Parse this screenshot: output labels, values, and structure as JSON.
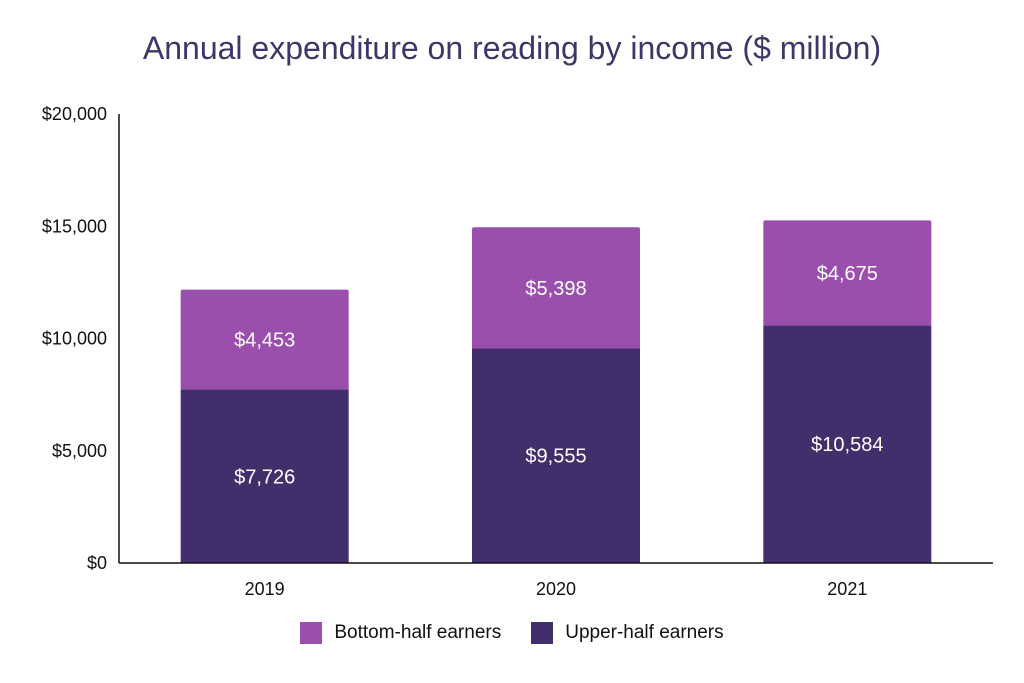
{
  "chart_data": {
    "type": "bar",
    "stacked": true,
    "title": "Annual expenditure on reading by income ($ million)",
    "categories": [
      "2019",
      "2020",
      "2021"
    ],
    "series": [
      {
        "name": "Upper-half earners",
        "values": [
          7726,
          9555,
          10584
        ],
        "labels": [
          "$7,726",
          "$9,555",
          "$10,584"
        ],
        "color": "#432e6c"
      },
      {
        "name": "Bottom-half earners",
        "values": [
          4453,
          5398,
          4675
        ],
        "labels": [
          "$4,453",
          "$5,398",
          "$4,675"
        ],
        "color": "#9b4fad"
      }
    ],
    "ylim": [
      0,
      20000
    ],
    "yticks": [
      0,
      5000,
      10000,
      15000,
      20000
    ],
    "ytick_labels": [
      "$0",
      "$5,000",
      "$10,000",
      "$15,000",
      "$20,000"
    ],
    "grid": false,
    "legend_position": "bottom"
  },
  "legend": {
    "items": [
      {
        "label": "Bottom-half earners",
        "color": "#9b4fad"
      },
      {
        "label": "Upper-half earners",
        "color": "#432e6c"
      }
    ]
  }
}
